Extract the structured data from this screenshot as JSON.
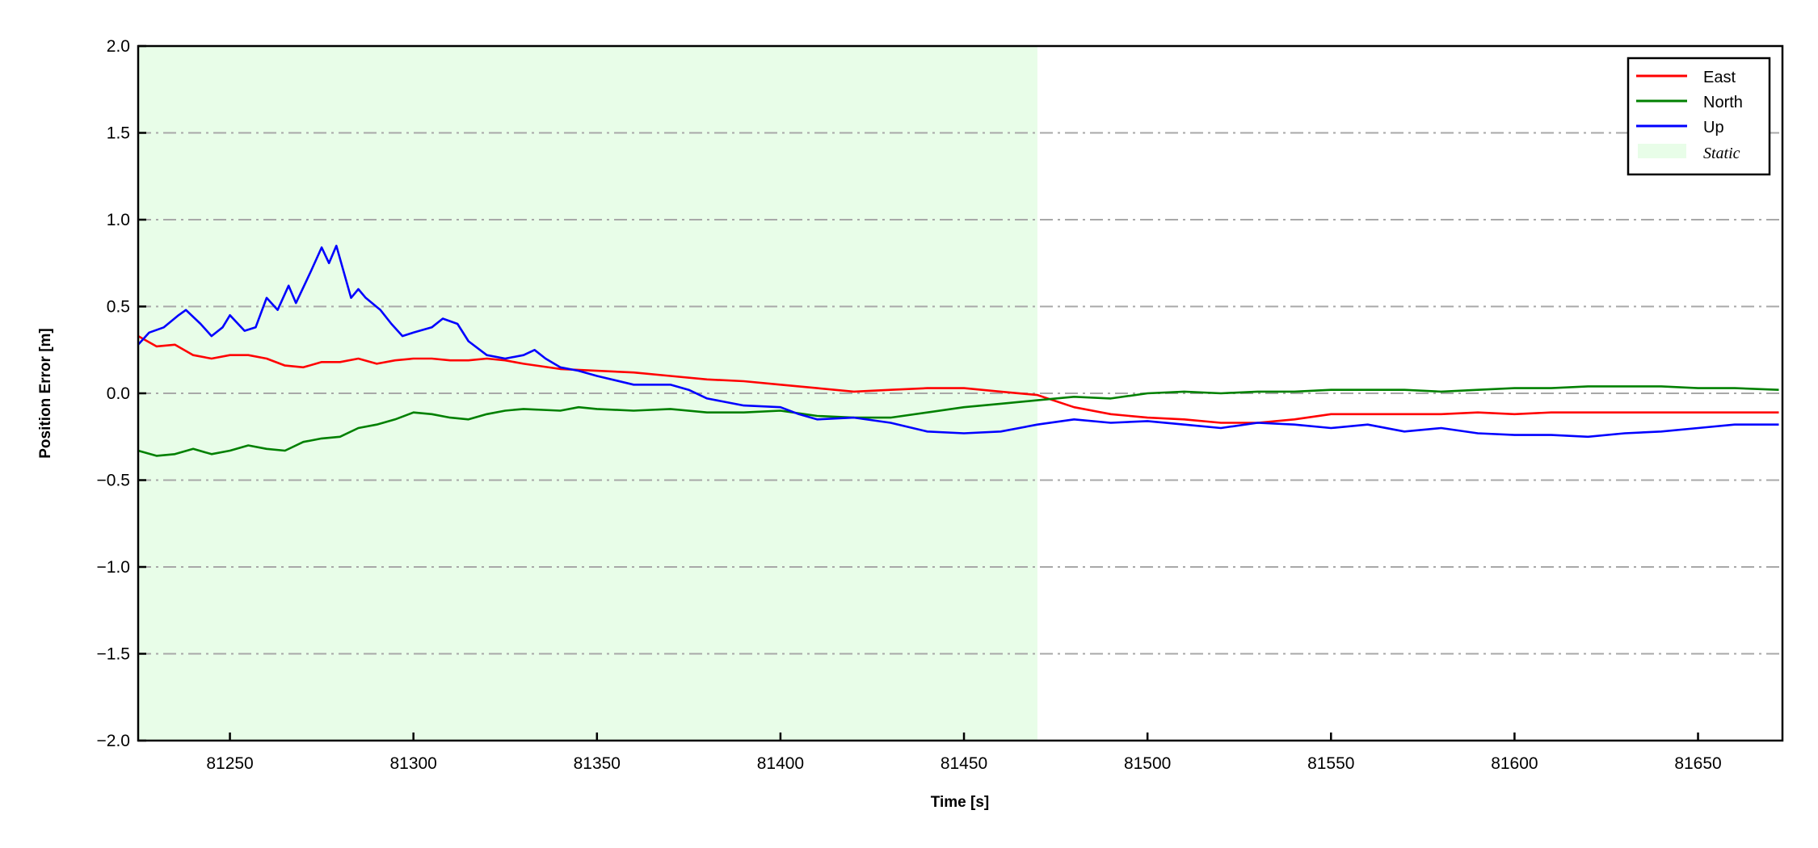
{
  "chart_data": {
    "type": "line",
    "title": "",
    "xlabel": "Time [s]",
    "ylabel": "Position Error [m]",
    "xlim": [
      81225,
      81673
    ],
    "ylim": [
      -2.0,
      2.0
    ],
    "xticks": [
      81250,
      81300,
      81350,
      81400,
      81450,
      81500,
      81550,
      81600,
      81650
    ],
    "xtick_labels": [
      "81250",
      "81300",
      "81350",
      "81400",
      "81450",
      "81500",
      "81550",
      "81600",
      "81650"
    ],
    "yticks": [
      -2.0,
      -1.5,
      -1.0,
      -0.5,
      0.0,
      0.5,
      1.0,
      1.5,
      2.0
    ],
    "ytick_labels": [
      "−2.0",
      "−1.5",
      "−1.0",
      "−0.5",
      "0.0",
      "0.5",
      "1.0",
      "1.5",
      "2.0"
    ],
    "grid": "horizontal dash-dot gray",
    "legend_placement": "top-right",
    "static_region": {
      "label": "Static",
      "x_start": 81225,
      "x_end": 81470,
      "color": "#e8fde8"
    },
    "series": [
      {
        "name": "East",
        "color": "#ff0000",
        "points": [
          [
            81225,
            0.33
          ],
          [
            81230,
            0.27
          ],
          [
            81235,
            0.28
          ],
          [
            81240,
            0.22
          ],
          [
            81245,
            0.2
          ],
          [
            81250,
            0.22
          ],
          [
            81255,
            0.22
          ],
          [
            81260,
            0.2
          ],
          [
            81265,
            0.16
          ],
          [
            81270,
            0.15
          ],
          [
            81275,
            0.18
          ],
          [
            81280,
            0.18
          ],
          [
            81285,
            0.2
          ],
          [
            81290,
            0.17
          ],
          [
            81295,
            0.19
          ],
          [
            81300,
            0.2
          ],
          [
            81305,
            0.2
          ],
          [
            81310,
            0.19
          ],
          [
            81315,
            0.19
          ],
          [
            81320,
            0.2
          ],
          [
            81325,
            0.19
          ],
          [
            81330,
            0.17
          ],
          [
            81340,
            0.14
          ],
          [
            81350,
            0.13
          ],
          [
            81360,
            0.12
          ],
          [
            81370,
            0.1
          ],
          [
            81380,
            0.08
          ],
          [
            81390,
            0.07
          ],
          [
            81400,
            0.05
          ],
          [
            81410,
            0.03
          ],
          [
            81420,
            0.01
          ],
          [
            81430,
            0.02
          ],
          [
            81440,
            0.03
          ],
          [
            81450,
            0.03
          ],
          [
            81460,
            0.01
          ],
          [
            81470,
            -0.01
          ],
          [
            81480,
            -0.08
          ],
          [
            81490,
            -0.12
          ],
          [
            81500,
            -0.14
          ],
          [
            81510,
            -0.15
          ],
          [
            81520,
            -0.17
          ],
          [
            81530,
            -0.17
          ],
          [
            81540,
            -0.15
          ],
          [
            81550,
            -0.12
          ],
          [
            81560,
            -0.12
          ],
          [
            81570,
            -0.12
          ],
          [
            81580,
            -0.12
          ],
          [
            81590,
            -0.11
          ],
          [
            81600,
            -0.12
          ],
          [
            81610,
            -0.11
          ],
          [
            81620,
            -0.11
          ],
          [
            81630,
            -0.11
          ],
          [
            81640,
            -0.11
          ],
          [
            81650,
            -0.11
          ],
          [
            81660,
            -0.11
          ],
          [
            81672,
            -0.11
          ]
        ]
      },
      {
        "name": "North",
        "color": "#008000",
        "points": [
          [
            81225,
            -0.33
          ],
          [
            81230,
            -0.36
          ],
          [
            81235,
            -0.35
          ],
          [
            81240,
            -0.32
          ],
          [
            81245,
            -0.35
          ],
          [
            81250,
            -0.33
          ],
          [
            81255,
            -0.3
          ],
          [
            81260,
            -0.32
          ],
          [
            81265,
            -0.33
          ],
          [
            81270,
            -0.28
          ],
          [
            81275,
            -0.26
          ],
          [
            81280,
            -0.25
          ],
          [
            81285,
            -0.2
          ],
          [
            81290,
            -0.18
          ],
          [
            81295,
            -0.15
          ],
          [
            81300,
            -0.11
          ],
          [
            81305,
            -0.12
          ],
          [
            81310,
            -0.14
          ],
          [
            81315,
            -0.15
          ],
          [
            81320,
            -0.12
          ],
          [
            81325,
            -0.1
          ],
          [
            81330,
            -0.09
          ],
          [
            81340,
            -0.1
          ],
          [
            81345,
            -0.08
          ],
          [
            81350,
            -0.09
          ],
          [
            81360,
            -0.1
          ],
          [
            81370,
            -0.09
          ],
          [
            81380,
            -0.11
          ],
          [
            81390,
            -0.11
          ],
          [
            81400,
            -0.1
          ],
          [
            81410,
            -0.13
          ],
          [
            81420,
            -0.14
          ],
          [
            81430,
            -0.14
          ],
          [
            81440,
            -0.11
          ],
          [
            81450,
            -0.08
          ],
          [
            81460,
            -0.06
          ],
          [
            81470,
            -0.04
          ],
          [
            81480,
            -0.02
          ],
          [
            81490,
            -0.03
          ],
          [
            81500,
            0.0
          ],
          [
            81510,
            0.01
          ],
          [
            81520,
            0.0
          ],
          [
            81530,
            0.01
          ],
          [
            81540,
            0.01
          ],
          [
            81550,
            0.02
          ],
          [
            81560,
            0.02
          ],
          [
            81570,
            0.02
          ],
          [
            81580,
            0.01
          ],
          [
            81590,
            0.02
          ],
          [
            81600,
            0.03
          ],
          [
            81610,
            0.03
          ],
          [
            81620,
            0.04
          ],
          [
            81630,
            0.04
          ],
          [
            81640,
            0.04
          ],
          [
            81650,
            0.03
          ],
          [
            81660,
            0.03
          ],
          [
            81672,
            0.02
          ]
        ]
      },
      {
        "name": "Up",
        "color": "#0000ff",
        "points": [
          [
            81225,
            0.28
          ],
          [
            81228,
            0.35
          ],
          [
            81232,
            0.38
          ],
          [
            81236,
            0.45
          ],
          [
            81238,
            0.48
          ],
          [
            81242,
            0.4
          ],
          [
            81245,
            0.33
          ],
          [
            81248,
            0.38
          ],
          [
            81250,
            0.45
          ],
          [
            81254,
            0.36
          ],
          [
            81257,
            0.38
          ],
          [
            81260,
            0.55
          ],
          [
            81263,
            0.48
          ],
          [
            81266,
            0.62
          ],
          [
            81268,
            0.52
          ],
          [
            81272,
            0.7
          ],
          [
            81275,
            0.84
          ],
          [
            81277,
            0.75
          ],
          [
            81279,
            0.85
          ],
          [
            81283,
            0.55
          ],
          [
            81285,
            0.6
          ],
          [
            81287,
            0.55
          ],
          [
            81291,
            0.48
          ],
          [
            81294,
            0.4
          ],
          [
            81297,
            0.33
          ],
          [
            81300,
            0.35
          ],
          [
            81305,
            0.38
          ],
          [
            81308,
            0.43
          ],
          [
            81312,
            0.4
          ],
          [
            81315,
            0.3
          ],
          [
            81320,
            0.22
          ],
          [
            81325,
            0.2
          ],
          [
            81330,
            0.22
          ],
          [
            81333,
            0.25
          ],
          [
            81336,
            0.2
          ],
          [
            81340,
            0.15
          ],
          [
            81345,
            0.13
          ],
          [
            81350,
            0.1
          ],
          [
            81360,
            0.05
          ],
          [
            81370,
            0.05
          ],
          [
            81375,
            0.02
          ],
          [
            81380,
            -0.03
          ],
          [
            81390,
            -0.07
          ],
          [
            81400,
            -0.08
          ],
          [
            81405,
            -0.12
          ],
          [
            81410,
            -0.15
          ],
          [
            81420,
            -0.14
          ],
          [
            81430,
            -0.17
          ],
          [
            81440,
            -0.22
          ],
          [
            81450,
            -0.23
          ],
          [
            81460,
            -0.22
          ],
          [
            81470,
            -0.18
          ],
          [
            81480,
            -0.15
          ],
          [
            81490,
            -0.17
          ],
          [
            81500,
            -0.16
          ],
          [
            81510,
            -0.18
          ],
          [
            81520,
            -0.2
          ],
          [
            81530,
            -0.17
          ],
          [
            81540,
            -0.18
          ],
          [
            81550,
            -0.2
          ],
          [
            81560,
            -0.18
          ],
          [
            81570,
            -0.22
          ],
          [
            81580,
            -0.2
          ],
          [
            81590,
            -0.23
          ],
          [
            81600,
            -0.24
          ],
          [
            81610,
            -0.24
          ],
          [
            81620,
            -0.25
          ],
          [
            81630,
            -0.23
          ],
          [
            81640,
            -0.22
          ],
          [
            81650,
            -0.2
          ],
          [
            81660,
            -0.18
          ],
          [
            81672,
            -0.18
          ]
        ]
      }
    ]
  }
}
